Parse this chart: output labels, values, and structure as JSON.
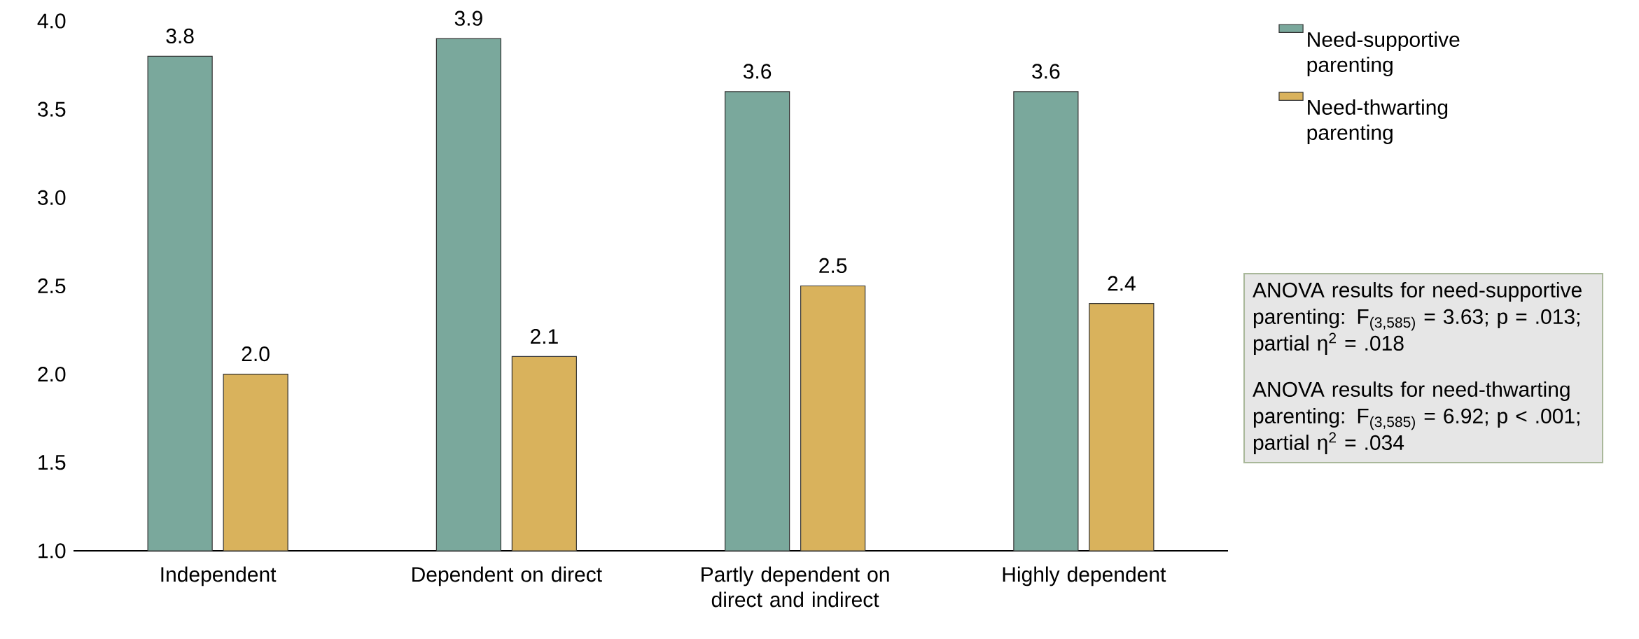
{
  "chart_data": {
    "type": "bar",
    "categories": [
      "Independent",
      "Dependent on direct",
      "Partly dependent on direct and indirect",
      "Highly dependent"
    ],
    "series": [
      {
        "name": "Need-supportive parenting",
        "color": "#7aa89c",
        "values": [
          3.8,
          3.9,
          3.6,
          3.6
        ],
        "value_labels": [
          "3.8",
          "3.9",
          "3.6",
          "3.6"
        ]
      },
      {
        "name": "Need-thwarting parenting",
        "color": "#d9b25c",
        "values": [
          2.0,
          2.1,
          2.5,
          2.4
        ],
        "value_labels": [
          "2.0",
          "2.1",
          "2.5",
          "2.4"
        ]
      }
    ],
    "ylim": [
      1,
      4
    ],
    "yticks": [
      {
        "value": 1,
        "label": "1.0"
      },
      {
        "value": 1.5,
        "label": "1.5"
      },
      {
        "value": 2,
        "label": "2.0"
      },
      {
        "value": 2.5,
        "label": "2.5"
      },
      {
        "value": 3,
        "label": "3.0"
      },
      {
        "value": 3.5,
        "label": "3.5"
      },
      {
        "value": 4,
        "label": "4.0"
      }
    ],
    "legend": "top right",
    "grid": false,
    "annotations": [
      "ANOVA results for need-supportive parenting: F$_{(3,585)}$ = 3.63; p = .013; partial η$^{2}$ = .018",
      "ANOVA results for need-thwarting parenting: F$_{(3,585)}$ = 6.92; p < .001; partial η$^{2}$ = .034"
    ]
  }
}
